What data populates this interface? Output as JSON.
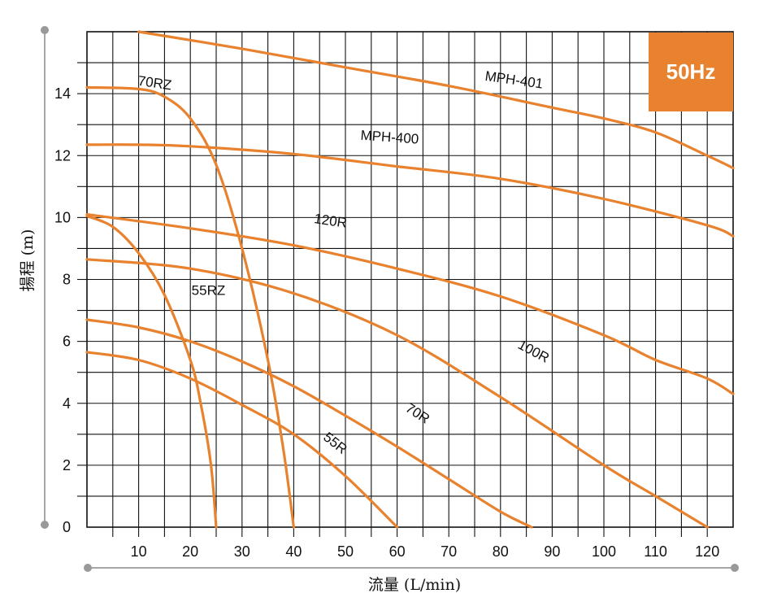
{
  "chart_data": {
    "type": "line",
    "title": "",
    "badge": "50Hz",
    "xlabel": "流量 (L/min)",
    "ylabel": "揚程 (m)",
    "xlim": [
      0,
      125
    ],
    "ylim": [
      0,
      16
    ],
    "x_ticks": [
      10,
      20,
      30,
      40,
      50,
      60,
      70,
      80,
      90,
      100,
      110,
      120
    ],
    "y_ticks": [
      0,
      2,
      4,
      6,
      8,
      10,
      12,
      14
    ],
    "grid": true,
    "series_color": "#E8822E",
    "badge_color": "#E8822E",
    "series": [
      {
        "name": "MPH-401",
        "x": [
          10,
          30,
          50,
          70,
          90,
          100,
          110,
          120,
          125
        ],
        "y": [
          16,
          15.45,
          14.85,
          14.25,
          13.55,
          13.2,
          12.75,
          12.0,
          11.6
        ]
      },
      {
        "name": "MPH-400",
        "x": [
          0,
          10,
          20,
          40,
          60,
          80,
          100,
          120,
          125
        ],
        "y": [
          12.35,
          12.35,
          12.3,
          12.05,
          11.65,
          11.25,
          10.6,
          9.75,
          9.4
        ]
      },
      {
        "name": "120R",
        "x": [
          0,
          20,
          40,
          60,
          80,
          100,
          110,
          120,
          125
        ],
        "y": [
          10.1,
          9.65,
          9.1,
          8.35,
          7.45,
          6.2,
          5.4,
          4.8,
          4.3
        ]
      },
      {
        "name": "100R",
        "x": [
          0,
          20,
          40,
          60,
          80,
          100,
          110,
          120
        ],
        "y": [
          8.65,
          8.35,
          7.55,
          6.2,
          4.2,
          2.0,
          1.0,
          0
        ]
      },
      {
        "name": "70R",
        "x": [
          0,
          10,
          20,
          30,
          40,
          50,
          60,
          70,
          80,
          86
        ],
        "y": [
          6.7,
          6.45,
          6.0,
          5.35,
          4.55,
          3.6,
          2.6,
          1.55,
          0.5,
          0
        ]
      },
      {
        "name": "55R",
        "x": [
          0,
          10,
          20,
          30,
          40,
          50,
          60
        ],
        "y": [
          5.65,
          5.4,
          4.8,
          3.95,
          3.0,
          1.65,
          0
        ]
      },
      {
        "name": "70RZ",
        "x": [
          0,
          10,
          15,
          20,
          25,
          30,
          35,
          38,
          40
        ],
        "y": [
          14.2,
          14.15,
          13.9,
          13.2,
          11.7,
          9.0,
          5.4,
          2.5,
          0
        ]
      },
      {
        "name": "55RZ",
        "x": [
          0,
          5,
          10,
          15,
          20,
          22,
          24,
          25
        ],
        "y": [
          10.05,
          9.7,
          8.85,
          7.5,
          5.4,
          4.0,
          2.0,
          0
        ]
      }
    ],
    "labels": [
      {
        "text": "MPH-401",
        "x": 82.5,
        "y": 14.3,
        "angle": 8
      },
      {
        "text": "MPH-400",
        "x": 58.5,
        "y": 12.45,
        "angle": 4
      },
      {
        "text": "120R",
        "x": 47.0,
        "y": 9.75,
        "angle": 8
      },
      {
        "text": "100R",
        "x": 86.0,
        "y": 5.55,
        "angle": 28
      },
      {
        "text": "70R",
        "x": 63.5,
        "y": 3.55,
        "angle": 33
      },
      {
        "text": "55R",
        "x": 47.5,
        "y": 2.6,
        "angle": 38
      },
      {
        "text": "70RZ",
        "x": 13.0,
        "y": 14.2,
        "angle": 8
      },
      {
        "text": "55RZ",
        "x": 23.5,
        "y": 7.5,
        "angle": 0
      }
    ]
  }
}
